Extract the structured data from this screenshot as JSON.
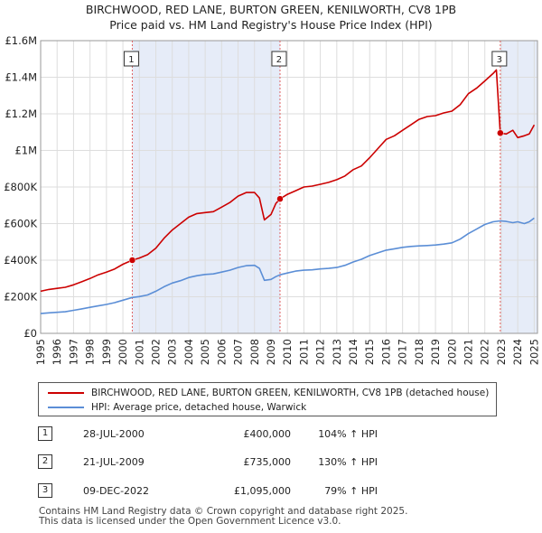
{
  "title": {
    "line1": "BIRCHWOOD, RED LANE, BURTON GREEN, KENILWORTH, CV8 1PB",
    "line2": "Price paid vs. HM Land Registry's House Price Index (HPI)"
  },
  "chart_data": {
    "type": "line",
    "xlim": [
      1995,
      2025.2
    ],
    "ylim": [
      0,
      1600000
    ],
    "yticks": [
      {
        "value": 0,
        "label": "£0"
      },
      {
        "value": 200000,
        "label": "£200K"
      },
      {
        "value": 400000,
        "label": "£400K"
      },
      {
        "value": 600000,
        "label": "£600K"
      },
      {
        "value": 800000,
        "label": "£800K"
      },
      {
        "value": 1000000,
        "label": "£1M"
      },
      {
        "value": 1200000,
        "label": "£1.2M"
      },
      {
        "value": 1400000,
        "label": "£1.4M"
      },
      {
        "value": 1600000,
        "label": "£1.6M"
      }
    ],
    "xticks": [
      "1995",
      "1996",
      "1997",
      "1998",
      "1999",
      "2000",
      "2001",
      "2002",
      "2003",
      "2004",
      "2005",
      "2006",
      "2007",
      "2008",
      "2009",
      "2010",
      "2011",
      "2012",
      "2013",
      "2014",
      "2015",
      "2016",
      "2017",
      "2018",
      "2019",
      "2020",
      "2021",
      "2022",
      "2023",
      "2024",
      "2025"
    ],
    "colors": {
      "property": "#cc0000",
      "hpi": "#5b8ed6",
      "shade": "#e6ecf8",
      "grid": "#dddddd",
      "marker_line": "#e06060"
    },
    "series": [
      {
        "name": "BIRCHWOOD, RED LANE, BURTON GREEN, KENILWORTH, CV8 1PB (detached house)",
        "color": "#cc0000",
        "x": [
          1995.0,
          1995.5,
          1996.0,
          1996.5,
          1997.0,
          1997.5,
          1998.0,
          1998.5,
          1999.0,
          1999.5,
          2000.0,
          2000.57,
          2001.0,
          2001.5,
          2002.0,
          2002.5,
          2003.0,
          2003.5,
          2004.0,
          2004.5,
          2005.0,
          2005.5,
          2006.0,
          2006.5,
          2007.0,
          2007.5,
          2008.0,
          2008.3,
          2008.6,
          2009.0,
          2009.3,
          2009.55,
          2010.0,
          2010.5,
          2011.0,
          2011.5,
          2012.0,
          2012.5,
          2013.0,
          2013.5,
          2014.0,
          2014.5,
          2015.0,
          2015.5,
          2016.0,
          2016.5,
          2017.0,
          2017.5,
          2018.0,
          2018.5,
          2019.0,
          2019.5,
          2020.0,
          2020.5,
          2021.0,
          2021.5,
          2022.0,
          2022.5,
          2022.7,
          2022.94,
          2023.3,
          2023.7,
          2024.0,
          2024.4,
          2024.7,
          2025.0
        ],
        "y": [
          230000,
          240000,
          246000,
          252000,
          265000,
          282000,
          300000,
          320000,
          335000,
          352000,
          378000,
          400000,
          412000,
          430000,
          465000,
          520000,
          565000,
          600000,
          635000,
          655000,
          660000,
          665000,
          690000,
          715000,
          750000,
          770000,
          770000,
          740000,
          620000,
          650000,
          710000,
          735000,
          760000,
          780000,
          800000,
          805000,
          815000,
          825000,
          840000,
          860000,
          895000,
          915000,
          960000,
          1010000,
          1060000,
          1080000,
          1110000,
          1140000,
          1170000,
          1185000,
          1190000,
          1205000,
          1215000,
          1250000,
          1310000,
          1340000,
          1380000,
          1420000,
          1440000,
          1095000,
          1090000,
          1110000,
          1070000,
          1080000,
          1090000,
          1140000
        ]
      },
      {
        "name": "HPI: Average price, detached house, Warwick",
        "color": "#5b8ed6",
        "x": [
          1995.0,
          1995.5,
          1996.0,
          1996.5,
          1997.0,
          1997.5,
          1998.0,
          1998.5,
          1999.0,
          1999.5,
          2000.0,
          2000.57,
          2001.0,
          2001.5,
          2002.0,
          2002.5,
          2003.0,
          2003.5,
          2004.0,
          2004.5,
          2005.0,
          2005.5,
          2006.0,
          2006.5,
          2007.0,
          2007.5,
          2008.0,
          2008.3,
          2008.6,
          2009.0,
          2009.3,
          2009.55,
          2010.0,
          2010.5,
          2011.0,
          2011.5,
          2012.0,
          2012.5,
          2013.0,
          2013.5,
          2014.0,
          2014.5,
          2015.0,
          2015.5,
          2016.0,
          2016.5,
          2017.0,
          2017.5,
          2018.0,
          2018.5,
          2019.0,
          2019.5,
          2020.0,
          2020.5,
          2021.0,
          2021.5,
          2022.0,
          2022.5,
          2022.94,
          2023.3,
          2023.7,
          2024.0,
          2024.4,
          2024.7,
          2025.0
        ],
        "y": [
          108000,
          112000,
          115000,
          118000,
          126000,
          134000,
          142000,
          150000,
          158000,
          168000,
          181000,
          196000,
          201000,
          210000,
          230000,
          255000,
          275000,
          288000,
          305000,
          315000,
          322000,
          325000,
          335000,
          345000,
          360000,
          370000,
          372000,
          355000,
          290000,
          295000,
          310000,
          320000,
          330000,
          340000,
          345000,
          347000,
          352000,
          355000,
          360000,
          372000,
          390000,
          405000,
          425000,
          440000,
          455000,
          462000,
          470000,
          475000,
          478000,
          480000,
          483000,
          488000,
          495000,
          515000,
          545000,
          570000,
          595000,
          610000,
          615000,
          612000,
          605000,
          610000,
          600000,
          610000,
          630000
        ]
      }
    ],
    "sales": [
      {
        "num": "1",
        "x": 2000.57,
        "y": 400000
      },
      {
        "num": "2",
        "x": 2009.55,
        "y": 735000
      },
      {
        "num": "3",
        "x": 2022.94,
        "y": 1095000
      }
    ]
  },
  "legend": {
    "property_label": "BIRCHWOOD, RED LANE, BURTON GREEN, KENILWORTH, CV8 1PB (detached house)",
    "hpi_label": "HPI: Average price, detached house, Warwick"
  },
  "sales_table": [
    {
      "num": "1",
      "date": "28-JUL-2000",
      "price": "£400,000",
      "hpi": "104% ↑ HPI"
    },
    {
      "num": "2",
      "date": "21-JUL-2009",
      "price": "£735,000",
      "hpi": "130% ↑ HPI"
    },
    {
      "num": "3",
      "date": "09-DEC-2022",
      "price": "£1,095,000",
      "hpi": "79% ↑ HPI"
    }
  ],
  "footer": {
    "line1": "Contains HM Land Registry data © Crown copyright and database right 2025.",
    "line2": "This data is licensed under the Open Government Licence v3.0."
  }
}
